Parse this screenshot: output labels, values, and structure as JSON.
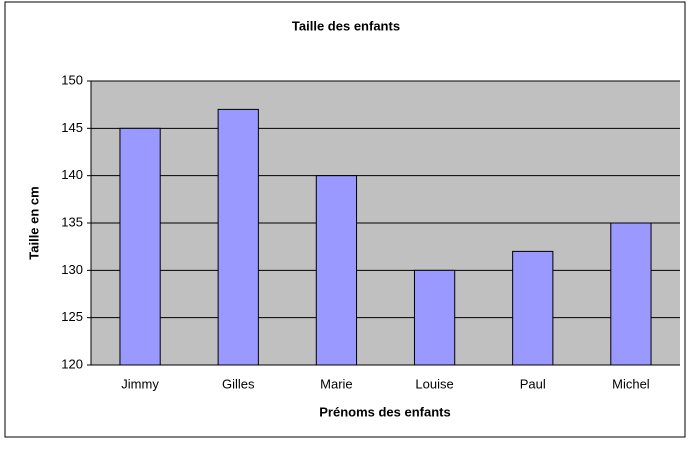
{
  "chart_data": {
    "type": "bar",
    "title": "Taille des enfants",
    "x_label": "Prénoms des enfants",
    "y_label": "Taille en cm",
    "categories": [
      "Jimmy",
      "Gilles",
      "Marie",
      "Louise",
      "Paul",
      "Michel"
    ],
    "values": [
      145,
      147,
      140,
      130,
      132,
      135
    ],
    "color": "#9999ff",
    "ylim": [
      120,
      150
    ],
    "yticks": [
      120,
      125,
      130,
      135,
      140,
      145,
      150
    ],
    "grid": true
  }
}
